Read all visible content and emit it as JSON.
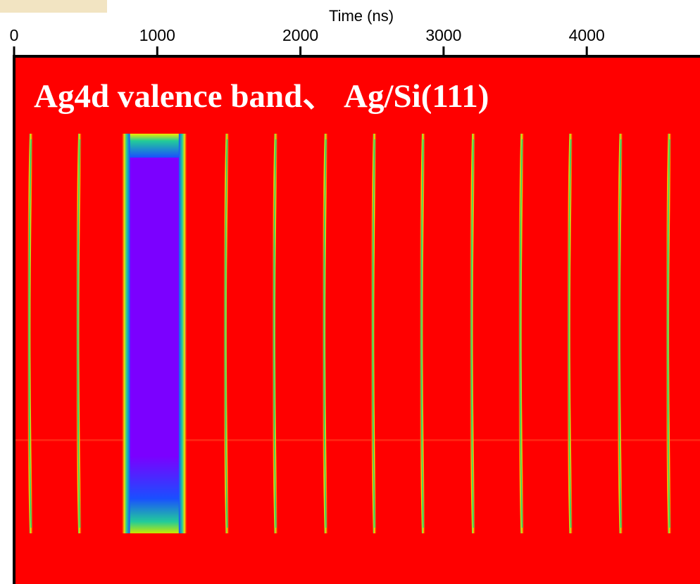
{
  "chart_data": {
    "type": "heatmap",
    "title": "Ag4d valence band、 Ag/Si(111)",
    "xlabel": "Time (ns)",
    "x_ticks": [
      0,
      1000,
      2000,
      3000,
      4000
    ],
    "xlim": [
      0,
      4800
    ],
    "x_axis_position": "top",
    "grid": false,
    "colormap": {
      "background": "#ff0000",
      "low": "#ff6a00",
      "mid": "#f6e800",
      "high": "#2ecc71",
      "peak": "#7b00ff"
    },
    "bunches": [
      {
        "time": 120,
        "type": "single"
      },
      {
        "time": 460,
        "type": "single"
      },
      {
        "time": 800,
        "type": "train_start"
      },
      {
        "time": 1160,
        "type": "train_end"
      },
      {
        "time": 1490,
        "type": "single"
      },
      {
        "time": 1830,
        "type": "single"
      },
      {
        "time": 2180,
        "type": "single"
      },
      {
        "time": 2520,
        "type": "single"
      },
      {
        "time": 2860,
        "type": "single"
      },
      {
        "time": 3210,
        "type": "single"
      },
      {
        "time": 3550,
        "type": "single"
      },
      {
        "time": 3890,
        "type": "single"
      },
      {
        "time": 4240,
        "type": "single"
      },
      {
        "time": 4580,
        "type": "single"
      }
    ]
  }
}
